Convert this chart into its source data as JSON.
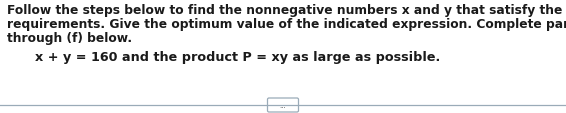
{
  "line1": "Follow the steps below to find the nonnegative numbers x and y that satisfy the given",
  "line2": "requirements. Give the optimum value of the indicated expression. Complete parts (a)",
  "line3": "through (f) below.",
  "line4": "x + y = 160 and the product P = xy as large as possible.",
  "dots": "...",
  "bg_color": "#ffffff",
  "text_color": "#1a1a1a",
  "font_size_main": 8.8,
  "font_size_eq": 9.2,
  "separator_color": "#9aabb8",
  "btn_color": "#9aabb8"
}
